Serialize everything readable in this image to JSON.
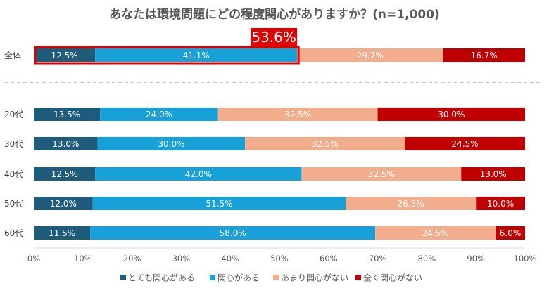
{
  "chart_data": {
    "type": "bar",
    "orientation": "horizontal",
    "stacked": "100%",
    "title": "あなたは環境問題にどの程度関心がありますか？(n=1,000)",
    "categories": [
      "全体",
      "20代",
      "30代",
      "40代",
      "50代",
      "60代"
    ],
    "series": [
      {
        "name": "とても関心がある",
        "color": "#1F5B7A",
        "values": [
          12.5,
          13.5,
          13.0,
          12.5,
          12.0,
          11.5
        ]
      },
      {
        "name": "関心がある",
        "color": "#18A0D8",
        "values": [
          41.1,
          24.0,
          30.0,
          42.0,
          51.5,
          58.0
        ]
      },
      {
        "name": "あまり関心がない",
        "color": "#F2AE8C",
        "values": [
          29.7,
          32.5,
          32.5,
          32.5,
          26.5,
          24.5
        ]
      },
      {
        "name": "全く関心がない",
        "color": "#C00000",
        "values": [
          16.7,
          30.0,
          24.5,
          13.0,
          10.0,
          6.0
        ]
      }
    ],
    "data_labels": [
      [
        "12.5%",
        "41.1%",
        "29.7%",
        "16.7%"
      ],
      [
        "13.5%",
        "24.0%",
        "32.5%",
        "30.0%"
      ],
      [
        "13.0%",
        "30.0%",
        "32.5%",
        "24.5%"
      ],
      [
        "12.5%",
        "42.0%",
        "32.5%",
        "13.0%"
      ],
      [
        "12.0%",
        "51.5%",
        "26.5%",
        "10.0%"
      ],
      [
        "11.5%",
        "58.0%",
        "24.5%",
        "6.0%"
      ]
    ],
    "xlim": [
      0,
      100
    ],
    "x_ticks": [
      "0%",
      "10%",
      "20%",
      "30%",
      "40%",
      "50%",
      "60%",
      "70%",
      "80%",
      "90%",
      "100%"
    ],
    "highlight": {
      "category": "全体",
      "series": [
        0,
        1
      ],
      "value": 53.6,
      "label": "53.6%",
      "color": "#E00000"
    },
    "separator": "dashed line after 全体",
    "legend": "bottom"
  }
}
